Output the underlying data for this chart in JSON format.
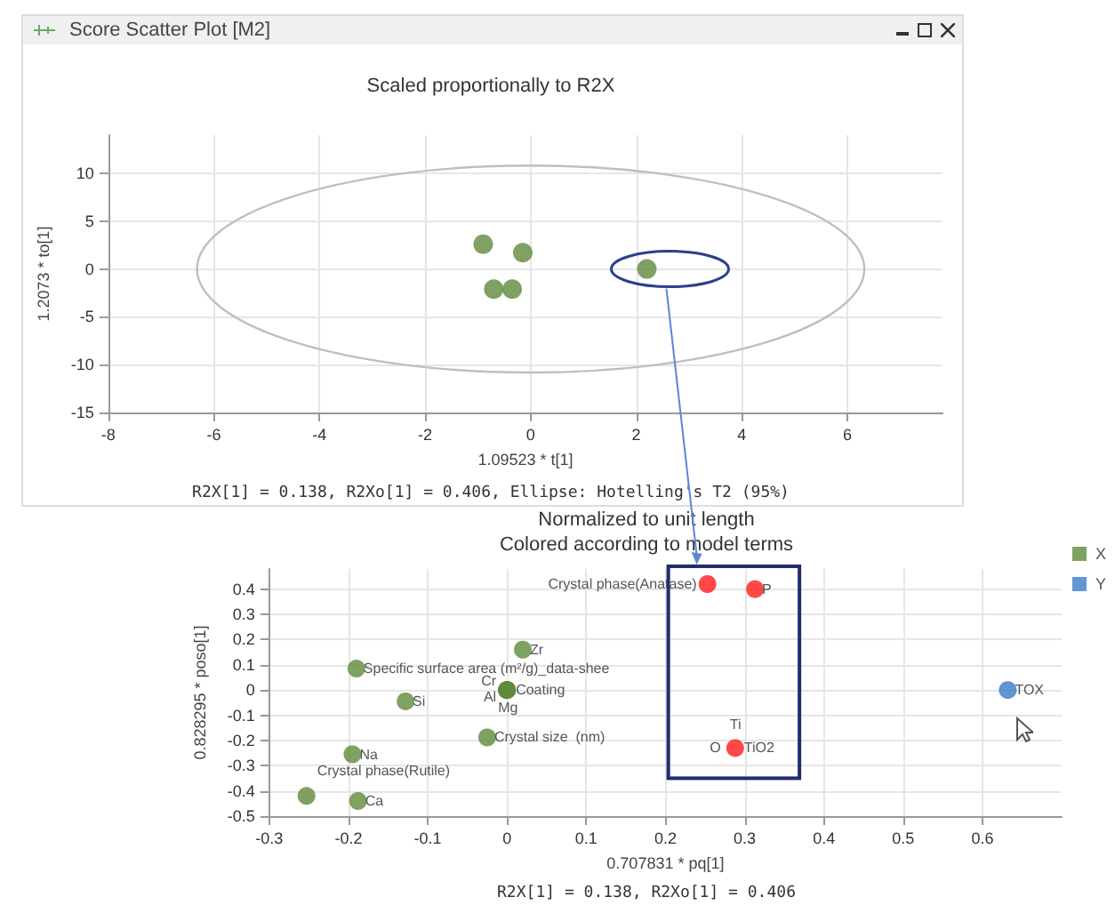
{
  "chart_data": [
    {
      "type": "scatter",
      "title": "Scaled proportionally to R2X",
      "xlabel": "1.09523 * t[1]",
      "ylabel": "1.2073 * to[1]",
      "annotations": [
        "Score Scatter Plot [M2]",
        "R2X[1] = 0.138, R2Xo[1] = 0.406, Ellipse: Hotelling's T2 (95%)"
      ],
      "xlim": [
        -8,
        7.8
      ],
      "xticks": [
        -8,
        -6,
        -4,
        -2,
        0,
        2,
        4,
        6
      ],
      "ylim": [
        -15,
        14
      ],
      "yticks": [
        -15,
        -10,
        -5,
        0,
        5,
        10
      ],
      "grid": true,
      "legend": false,
      "marker": "circle",
      "series": [
        {
          "color": "#5f8a3a",
          "x": [
            -0.9,
            -0.15,
            2.2,
            -0.7,
            -0.35
          ],
          "values": [
            2.6,
            1.7,
            0,
            -2.1,
            -2.1
          ]
        }
      ]
    },
    {
      "type": "scatter",
      "title": "Normalized to unit length",
      "subtitle": "Colored according to model terms",
      "xlabel": "0.707831 * pq[1]",
      "ylabel": "0.828295 * poso[1]",
      "xlim": [
        -0.3,
        0.7
      ],
      "xticks": [
        -0.3,
        -0.2,
        -0.1,
        0,
        0.1,
        0.2,
        0.3,
        0.4,
        0.5,
        0.6
      ],
      "ylim": [
        -0.5,
        0.48
      ],
      "yticks": [
        -0.5,
        -0.4,
        -0.3,
        -0.2,
        -0.1,
        0,
        0.1,
        0.2,
        0.3,
        0.4
      ],
      "grid": true,
      "legend": "right",
      "marker": "circle",
      "series": [
        {
          "name": "X",
          "color": "#5f8a3a",
          "x": [
            0.02,
            -0.19,
            0,
            0,
            0,
            0,
            -0.128,
            -0.025,
            -0.195,
            -0.253,
            -0.188
          ],
          "values": [
            0.16,
            0.085,
            0,
            0,
            0,
            0,
            -0.045,
            -0.188,
            -0.255,
            -0.42,
            -0.44
          ]
        },
        {
          "color": "#ff1a1a",
          "x": [
            0.253,
            0.313,
            0.288
          ],
          "values": [
            0.42,
            0.4,
            -0.23
          ]
        },
        {
          "name": "Y",
          "color": "#3a7bc8",
          "x": [
            0.632
          ],
          "values": [
            0
          ]
        }
      ],
      "annotations": [
        {
          "text": "Zr",
          "x": 0.02,
          "y": 0.16
        },
        {
          "text": "Specific surface area (m²/g)_data-shee",
          "x": -0.19,
          "y": 0.085
        },
        {
          "text": "Cr",
          "x": 0,
          "y": 0
        },
        {
          "text": "Al",
          "x": 0,
          "y": 0
        },
        {
          "text": "Coating",
          "x": 0,
          "y": 0
        },
        {
          "text": "Mg",
          "x": 0,
          "y": 0
        },
        {
          "text": "Si",
          "x": -0.128,
          "y": -0.045
        },
        {
          "text": "Crystal size  (nm)",
          "x": -0.025,
          "y": -0.188
        },
        {
          "text": "Na",
          "x": -0.195,
          "y": -0.255
        },
        {
          "text": "Crystal phase(Rutile)",
          "x": -0.253,
          "y": -0.42
        },
        {
          "text": "Ca",
          "x": -0.188,
          "y": -0.44
        },
        {
          "text": "Crystal phase(Anatase)",
          "x": 0.253,
          "y": 0.42
        },
        {
          "text": "P",
          "x": 0.313,
          "y": 0.4
        },
        {
          "text": "Ti",
          "x": 0.288,
          "y": -0.23
        },
        {
          "text": "O",
          "x": 0.288,
          "y": -0.23
        },
        {
          "text": "TiO2",
          "x": 0.288,
          "y": -0.23
        },
        {
          "text": "TOX",
          "x": 0.632,
          "y": 0
        },
        "R2X[1] = 0.138, R2Xo[1] = 0.406"
      ]
    }
  ]
}
